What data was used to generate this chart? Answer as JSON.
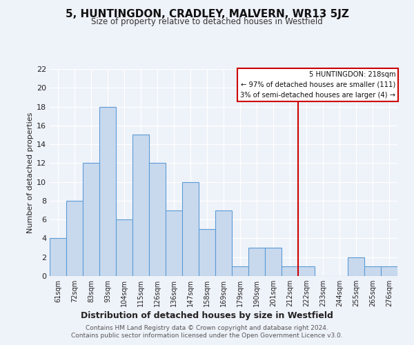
{
  "title": "5, HUNTINGDON, CRADLEY, MALVERN, WR13 5JZ",
  "subtitle": "Size of property relative to detached houses in Westfield",
  "xlabel": "Distribution of detached houses by size in Westfield",
  "ylabel": "Number of detached properties",
  "bar_labels": [
    "61sqm",
    "72sqm",
    "83sqm",
    "93sqm",
    "104sqm",
    "115sqm",
    "126sqm",
    "136sqm",
    "147sqm",
    "158sqm",
    "169sqm",
    "179sqm",
    "190sqm",
    "201sqm",
    "212sqm",
    "222sqm",
    "233sqm",
    "244sqm",
    "255sqm",
    "265sqm",
    "276sqm"
  ],
  "bar_values": [
    4,
    8,
    12,
    18,
    6,
    15,
    12,
    7,
    10,
    5,
    7,
    1,
    3,
    3,
    1,
    1,
    0,
    0,
    2,
    1,
    1
  ],
  "bar_color": "#c8d9ee",
  "bar_edge_color": "#5b9bd5",
  "vline_color": "#cc0000",
  "annotation_title": "5 HUNTINGDON: 218sqm",
  "annotation_line1": "← 97% of detached houses are smaller (111)",
  "annotation_line2": "3% of semi-detached houses are larger (4) →",
  "annotation_box_edge_color": "#cc0000",
  "ylim": [
    0,
    22
  ],
  "yticks": [
    0,
    2,
    4,
    6,
    8,
    10,
    12,
    14,
    16,
    18,
    20,
    22
  ],
  "footer_line1": "Contains HM Land Registry data © Crown copyright and database right 2024.",
  "footer_line2": "Contains public sector information licensed under the Open Government Licence v3.0.",
  "bg_color": "#eef2f9",
  "plot_bg_color": "#eef2f9",
  "grid_color": "#ffffff"
}
